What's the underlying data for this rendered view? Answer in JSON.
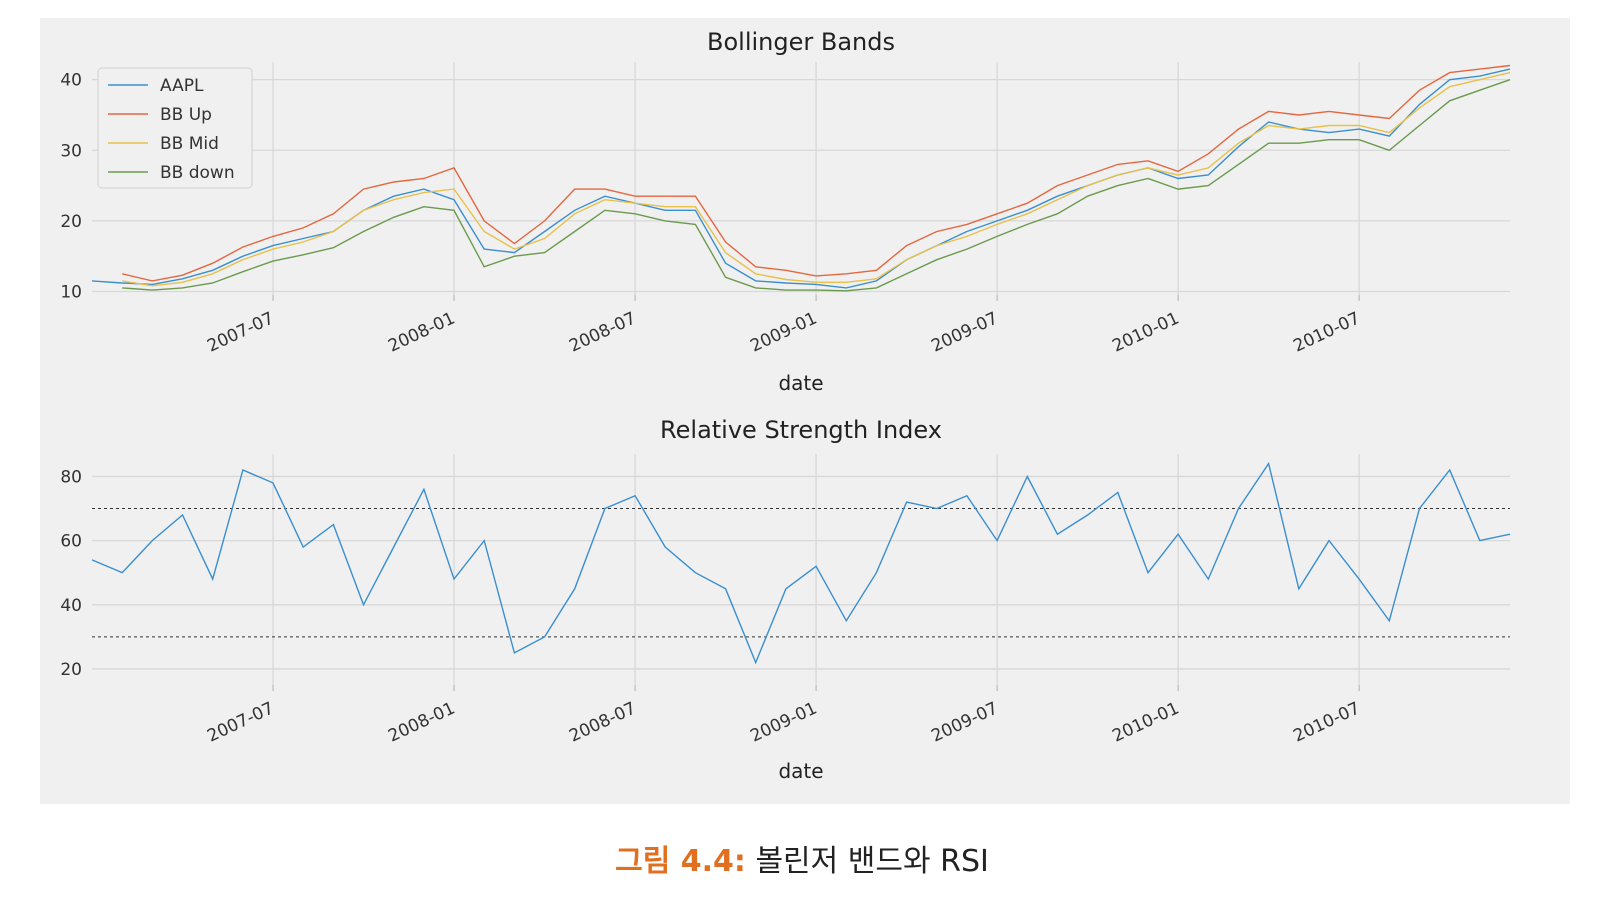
{
  "caption": {
    "label": "그림 4.4:",
    "text": "볼린저 밴드와 RSI"
  },
  "colors": {
    "aapl": "#3a8fd0",
    "bb_up": "#e5673f",
    "bb_mid": "#e8c04a",
    "bb_down": "#6b9a4e",
    "rsi": "#3a8fd0"
  },
  "chart_data": [
    {
      "type": "line",
      "title": "Bollinger Bands",
      "xlabel": "date",
      "ylabel": "",
      "x_range": [
        "2007-01",
        "2010-12"
      ],
      "xticks": [
        "2007-07",
        "2008-01",
        "2008-07",
        "2009-01",
        "2009-07",
        "2010-01",
        "2010-07"
      ],
      "yticks": [
        10,
        20,
        30,
        40
      ],
      "ylim": [
        9.5,
        42.5
      ],
      "grid": true,
      "legend": "top-left",
      "series": [
        {
          "name": "AAPL",
          "x": [
            "2007-01",
            "2007-02",
            "2007-03",
            "2007-04",
            "2007-05",
            "2007-06",
            "2007-07",
            "2007-08",
            "2007-09",
            "2007-10",
            "2007-11",
            "2007-12",
            "2008-01",
            "2008-02",
            "2008-03",
            "2008-04",
            "2008-05",
            "2008-06",
            "2008-07",
            "2008-08",
            "2008-09",
            "2008-10",
            "2008-11",
            "2008-12",
            "2009-01",
            "2009-02",
            "2009-03",
            "2009-04",
            "2009-05",
            "2009-06",
            "2009-07",
            "2009-08",
            "2009-09",
            "2009-10",
            "2009-11",
            "2009-12",
            "2010-01",
            "2010-02",
            "2010-03",
            "2010-04",
            "2010-05",
            "2010-06",
            "2010-07",
            "2010-08",
            "2010-09",
            "2010-10",
            "2010-11",
            "2010-12"
          ],
          "values": [
            11.5,
            11.2,
            11.0,
            11.8,
            13.0,
            15.0,
            16.5,
            17.5,
            18.5,
            21.5,
            23.5,
            24.5,
            23.0,
            16.0,
            15.5,
            18.5,
            21.5,
            23.5,
            22.5,
            21.5,
            21.5,
            14.0,
            11.5,
            11.2,
            11.0,
            10.5,
            11.5,
            14.5,
            16.5,
            18.5,
            20.0,
            21.5,
            23.5,
            25.0,
            26.5,
            27.5,
            26.0,
            26.5,
            30.5,
            34.0,
            33.0,
            32.5,
            33.0,
            32.0,
            36.5,
            40.0,
            40.5,
            41.5
          ]
        },
        {
          "name": "BB Up",
          "x": [
            "2007-02",
            "2007-03",
            "2007-04",
            "2007-05",
            "2007-06",
            "2007-07",
            "2007-08",
            "2007-09",
            "2007-10",
            "2007-11",
            "2007-12",
            "2008-01",
            "2008-02",
            "2008-03",
            "2008-04",
            "2008-05",
            "2008-06",
            "2008-07",
            "2008-08",
            "2008-09",
            "2008-10",
            "2008-11",
            "2008-12",
            "2009-01",
            "2009-02",
            "2009-03",
            "2009-04",
            "2009-05",
            "2009-06",
            "2009-07",
            "2009-08",
            "2009-09",
            "2009-10",
            "2009-11",
            "2009-12",
            "2010-01",
            "2010-02",
            "2010-03",
            "2010-04",
            "2010-05",
            "2010-06",
            "2010-07",
            "2010-08",
            "2010-09",
            "2010-10",
            "2010-11",
            "2010-12"
          ],
          "values": [
            12.5,
            11.5,
            12.3,
            14.0,
            16.3,
            17.8,
            19.0,
            21.0,
            24.5,
            25.5,
            26.0,
            27.5,
            20.0,
            16.8,
            20.0,
            24.5,
            24.5,
            23.5,
            23.5,
            23.5,
            17.0,
            13.5,
            13.0,
            12.2,
            12.5,
            13.0,
            16.5,
            18.5,
            19.5,
            21.0,
            22.5,
            25.0,
            26.5,
            28.0,
            28.5,
            27.0,
            29.5,
            33.0,
            35.5,
            35.0,
            35.5,
            35.0,
            34.5,
            38.5,
            41.0,
            41.5,
            42.0
          ]
        },
        {
          "name": "BB Mid",
          "x": [
            "2007-02",
            "2007-03",
            "2007-04",
            "2007-05",
            "2007-06",
            "2007-07",
            "2007-08",
            "2007-09",
            "2007-10",
            "2007-11",
            "2007-12",
            "2008-01",
            "2008-02",
            "2008-03",
            "2008-04",
            "2008-05",
            "2008-06",
            "2008-07",
            "2008-08",
            "2008-09",
            "2008-10",
            "2008-11",
            "2008-12",
            "2009-01",
            "2009-02",
            "2009-03",
            "2009-04",
            "2009-05",
            "2009-06",
            "2009-07",
            "2009-08",
            "2009-09",
            "2009-10",
            "2009-11",
            "2009-12",
            "2010-01",
            "2010-02",
            "2010-03",
            "2010-04",
            "2010-05",
            "2010-06",
            "2010-07",
            "2010-08",
            "2010-09",
            "2010-10",
            "2010-11",
            "2010-12"
          ],
          "values": [
            11.5,
            10.8,
            11.3,
            12.5,
            14.5,
            16.0,
            17.0,
            18.5,
            21.5,
            23.0,
            24.0,
            24.5,
            18.5,
            16.0,
            17.5,
            21.0,
            23.0,
            22.5,
            22.0,
            22.0,
            15.5,
            12.5,
            11.7,
            11.3,
            11.3,
            11.8,
            14.5,
            16.5,
            17.8,
            19.5,
            21.0,
            23.0,
            25.0,
            26.5,
            27.5,
            26.5,
            27.5,
            31.0,
            33.5,
            33.0,
            33.5,
            33.5,
            32.5,
            36.0,
            39.0,
            40.0,
            41.0
          ]
        },
        {
          "name": "BB down",
          "x": [
            "2007-02",
            "2007-03",
            "2007-04",
            "2007-05",
            "2007-06",
            "2007-07",
            "2007-08",
            "2007-09",
            "2007-10",
            "2007-11",
            "2007-12",
            "2008-01",
            "2008-02",
            "2008-03",
            "2008-04",
            "2008-05",
            "2008-06",
            "2008-07",
            "2008-08",
            "2008-09",
            "2008-10",
            "2008-11",
            "2008-12",
            "2009-01",
            "2009-02",
            "2009-03",
            "2009-04",
            "2009-05",
            "2009-06",
            "2009-07",
            "2009-08",
            "2009-09",
            "2009-10",
            "2009-11",
            "2009-12",
            "2010-01",
            "2010-02",
            "2010-03",
            "2010-04",
            "2010-05",
            "2010-06",
            "2010-07",
            "2010-08",
            "2010-09",
            "2010-10",
            "2010-11",
            "2010-12"
          ],
          "values": [
            10.5,
            10.2,
            10.5,
            11.2,
            12.8,
            14.3,
            15.2,
            16.2,
            18.5,
            20.5,
            22.0,
            21.5,
            13.5,
            15.0,
            15.5,
            18.5,
            21.5,
            21.0,
            20.0,
            19.5,
            12.0,
            10.5,
            10.2,
            10.2,
            10.1,
            10.5,
            12.5,
            14.5,
            16.0,
            17.8,
            19.5,
            21.0,
            23.5,
            25.0,
            26.0,
            24.5,
            25.0,
            28.0,
            31.0,
            31.0,
            31.5,
            31.5,
            30.0,
            33.5,
            37.0,
            38.5,
            40.0
          ]
        }
      ]
    },
    {
      "type": "line",
      "title": "Relative Strength Index",
      "xlabel": "date",
      "ylabel": "",
      "x_range": [
        "2007-01",
        "2010-12"
      ],
      "xticks": [
        "2007-07",
        "2008-01",
        "2008-07",
        "2009-01",
        "2009-07",
        "2010-01",
        "2010-07"
      ],
      "yticks": [
        20,
        40,
        60,
        80
      ],
      "ylim": [
        15,
        87
      ],
      "grid": true,
      "hlines": [
        70,
        30
      ],
      "series": [
        {
          "x": [
            "2007-01",
            "2007-02",
            "2007-03",
            "2007-04",
            "2007-05",
            "2007-06",
            "2007-07",
            "2007-08",
            "2007-09",
            "2007-10",
            "2007-11",
            "2007-12",
            "2008-01",
            "2008-02",
            "2008-03",
            "2008-04",
            "2008-05",
            "2008-06",
            "2008-07",
            "2008-08",
            "2008-09",
            "2008-10",
            "2008-11",
            "2008-12",
            "2009-01",
            "2009-02",
            "2009-03",
            "2009-04",
            "2009-05",
            "2009-06",
            "2009-07",
            "2009-08",
            "2009-09",
            "2009-10",
            "2009-11",
            "2009-12",
            "2010-01",
            "2010-02",
            "2010-03",
            "2010-04",
            "2010-05",
            "2010-06",
            "2010-07",
            "2010-08",
            "2010-09",
            "2010-10",
            "2010-11",
            "2010-12"
          ],
          "values": [
            54,
            50,
            60,
            68,
            48,
            82,
            78,
            58,
            65,
            40,
            58,
            76,
            48,
            60,
            25,
            30,
            45,
            70,
            74,
            58,
            50,
            45,
            22,
            45,
            52,
            35,
            50,
            72,
            70,
            74,
            60,
            80,
            62,
            68,
            75,
            50,
            62,
            48,
            70,
            84,
            45,
            60,
            48,
            35,
            70,
            82,
            60,
            62
          ]
        }
      ]
    }
  ]
}
